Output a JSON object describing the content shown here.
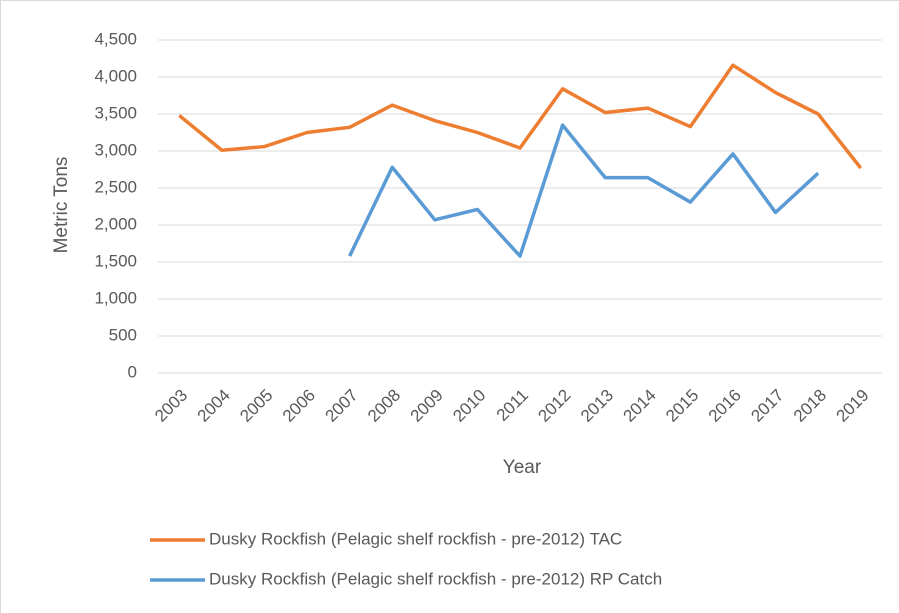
{
  "chart_data": {
    "type": "line",
    "x_label": "Year",
    "y_label": "Metric Tons",
    "categories": [
      "2003",
      "2004",
      "2005",
      "2006",
      "2007",
      "2008",
      "2009",
      "2010",
      "2011",
      "2012",
      "2013",
      "2014",
      "2015",
      "2016",
      "2017",
      "2018",
      "2019"
    ],
    "series": [
      {
        "name": "Dusky Rockfish (Pelagic shelf rockfish - pre-2012) TAC",
        "color": "#ED7D31",
        "values": [
          3480,
          3010,
          3060,
          3250,
          3320,
          3620,
          3410,
          3250,
          3040,
          3840,
          3520,
          3580,
          3330,
          4160,
          3790,
          3500,
          2770
        ]
      },
      {
        "name": "Dusky Rockfish (Pelagic shelf rockfish - pre-2012) RP Catch",
        "color": "#5B9BD5",
        "values": [
          null,
          null,
          null,
          null,
          1580,
          2780,
          2070,
          2210,
          1580,
          3350,
          2640,
          2640,
          2310,
          2960,
          2170,
          2700,
          null
        ]
      }
    ],
    "ylim": [
      0,
      4500
    ],
    "yticks": [
      0,
      500,
      {
        "value": 1000,
        "label": "1,000"
      },
      {
        "value": 1500,
        "label": "1,500"
      },
      {
        "value": 2000,
        "label": "2,000"
      },
      {
        "value": 2500,
        "label": "2,500"
      },
      {
        "value": 3000,
        "label": "3,000"
      },
      {
        "value": 3500,
        "label": "3,500"
      },
      {
        "value": 4000,
        "label": "4,000"
      },
      {
        "value": 4500,
        "label": "4,500"
      }
    ],
    "grid": true,
    "legend": "bottom"
  }
}
